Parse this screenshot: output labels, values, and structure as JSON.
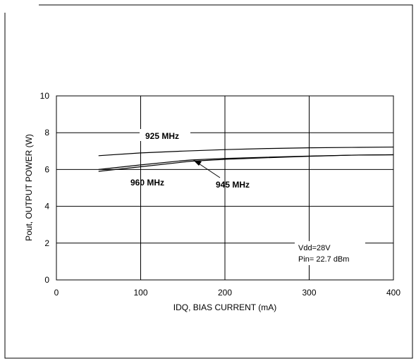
{
  "chart_data": {
    "type": "line",
    "xlabel": "IDQ, BIAS CURRENT (mA)",
    "ylabel": "Pout, OUTPUT POWER (W)",
    "xlim": [
      0,
      400
    ],
    "ylim": [
      0,
      10
    ],
    "xticks": [
      "0",
      "100",
      "200",
      "300",
      "400"
    ],
    "yticks": [
      "0",
      "2",
      "4",
      "6",
      "8",
      "10"
    ],
    "grid": true,
    "series": [
      {
        "name": "925 MHz",
        "x": [
          50,
          100,
          150,
          200,
          250,
          300,
          350,
          400
        ],
        "y": [
          6.75,
          6.9,
          7.0,
          7.08,
          7.14,
          7.18,
          7.2,
          7.22
        ]
      },
      {
        "name": "945 MHz",
        "x": [
          50,
          100,
          150,
          160,
          200,
          250,
          300,
          350,
          400
        ],
        "y": [
          6.0,
          6.25,
          6.48,
          6.52,
          6.6,
          6.67,
          6.73,
          6.78,
          6.8
        ]
      },
      {
        "name": "960 MHz",
        "x": [
          50,
          100,
          150,
          160,
          200,
          250,
          300,
          350,
          400
        ],
        "y": [
          5.9,
          6.15,
          6.4,
          6.45,
          6.55,
          6.64,
          6.72,
          6.78,
          6.8
        ]
      }
    ],
    "annotations": [
      "Vdd=28V",
      "Pin= 22.7 dBm"
    ]
  },
  "colors": {
    "line": "#000000",
    "grid": "#000000",
    "background": "#ffffff"
  }
}
